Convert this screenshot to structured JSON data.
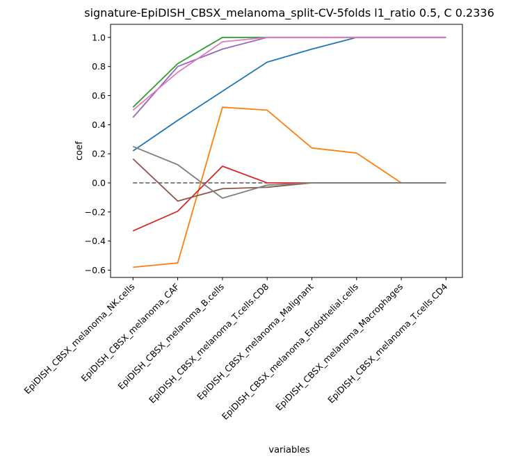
{
  "chart_data": {
    "type": "line",
    "title": "signature-EpiDISH_CBSX_melanoma_split-CV-5folds l1_ratio 0.5, C 0.2336",
    "xlabel": "variables",
    "ylabel": "coef",
    "categories": [
      "EpiDISH_CBSX_melanoma_NK.cells",
      "EpiDISH_CBSX_melanoma_CAF",
      "EpiDISH_CBSX_melanoma_B.cells",
      "EpiDISH_CBSX_melanoma_T.cells.CD8",
      "EpiDISH_CBSX_melanoma_Malignant",
      "EpiDISH_CBSX_melanoma_Endothelial.cells",
      "EpiDISH_CBSX_melanoma_Macrophages",
      "EpiDISH_CBSX_melanoma_T.cells.CD4"
    ],
    "yticks": [
      "−0.6",
      "−0.4",
      "−0.2",
      "0.0",
      "0.2",
      "0.4",
      "0.6",
      "0.8",
      "1.0"
    ],
    "ylim": [
      -0.65,
      1.09
    ],
    "grid": false,
    "legend": "none",
    "series": [
      {
        "color": "#1f77b4",
        "values": [
          0.22,
          0.43,
          0.63,
          0.83,
          0.92,
          1.0,
          1.0,
          1.0
        ]
      },
      {
        "color": "#ff7f0e",
        "values": [
          -0.58,
          -0.55,
          0.52,
          0.5,
          0.24,
          0.205,
          0.0,
          0.0
        ]
      },
      {
        "color": "#2ca02c",
        "values": [
          0.52,
          0.82,
          1.0,
          1.0,
          1.0,
          1.0,
          1.0,
          1.0
        ]
      },
      {
        "color": "#d62728",
        "values": [
          -0.33,
          -0.195,
          0.115,
          0.0,
          0.0,
          0.0,
          0.0,
          0.0
        ]
      },
      {
        "color": "#9467bd",
        "values": [
          0.45,
          0.8,
          0.92,
          1.0,
          1.0,
          1.0,
          1.0,
          1.0
        ]
      },
      {
        "color": "#8c564b",
        "values": [
          0.165,
          -0.125,
          -0.04,
          -0.03,
          0.0,
          0.0,
          0.0,
          0.0
        ]
      },
      {
        "color": "#e377c2",
        "values": [
          0.5,
          0.76,
          0.97,
          1.0,
          1.0,
          1.0,
          1.0,
          1.0
        ]
      },
      {
        "color": "#7f7f7f",
        "values": [
          0.25,
          0.125,
          -0.105,
          -0.015,
          0.0,
          0.0,
          0.0,
          0.0
        ]
      }
    ],
    "reference_line": {
      "y": 0.0,
      "x_from_index": 0,
      "x_to_index": 3,
      "color": "#808080",
      "style": "dashed"
    }
  }
}
